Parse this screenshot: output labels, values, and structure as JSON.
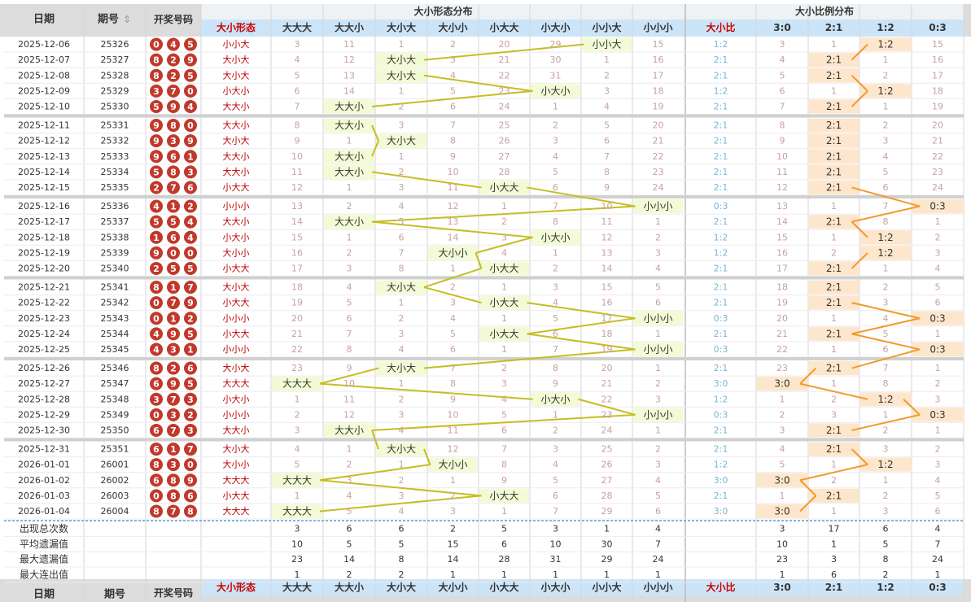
{
  "top_caption": "",
  "header": {
    "date": "日期",
    "issue": "期号",
    "sort_icon": "sort-arrows-icon",
    "draw": "开奖号码",
    "shape_group": "大小形态分布",
    "ratio_group": "大小比例分布"
  },
  "columns": {
    "shape_col": "大小形态",
    "shapes": [
      "大大大",
      "大大小",
      "大小大",
      "大小小",
      "小大大",
      "小大小",
      "小小大",
      "小小小"
    ],
    "ratio_col": "大小比",
    "ratios": [
      "3:0",
      "2:1",
      "1:2",
      "0:3"
    ]
  },
  "stats_labels": [
    "出现总次数",
    "平均遗漏值",
    "最大遗漏值",
    "最大连出值"
  ],
  "chart_data": {
    "type": "table",
    "rows": [
      {
        "date": "2025-12-06",
        "issue": "25326",
        "nums": [
          0,
          4,
          5
        ],
        "shape": "小小大",
        "shape_idx": 6,
        "shape_miss": [
          3,
          11,
          1,
          2,
          20,
          29,
          null,
          15
        ],
        "ratio": "1:2",
        "ratio_idx": 2,
        "ratio_miss": [
          3,
          1,
          null,
          15
        ]
      },
      {
        "date": "2025-12-07",
        "issue": "25327",
        "nums": [
          8,
          2,
          9
        ],
        "shape": "大小大",
        "shape_idx": 2,
        "shape_miss": [
          4,
          12,
          null,
          3,
          21,
          30,
          1,
          16
        ],
        "ratio": "2:1",
        "ratio_idx": 1,
        "ratio_miss": [
          4,
          null,
          1,
          16
        ]
      },
      {
        "date": "2025-12-08",
        "issue": "25328",
        "nums": [
          8,
          2,
          5
        ],
        "shape": "大小大",
        "shape_idx": 2,
        "shape_miss": [
          5,
          13,
          null,
          4,
          22,
          31,
          2,
          17
        ],
        "ratio": "2:1",
        "ratio_idx": 1,
        "ratio_miss": [
          5,
          null,
          2,
          17
        ]
      },
      {
        "date": "2025-12-09",
        "issue": "25329",
        "nums": [
          3,
          7,
          0
        ],
        "shape": "小大小",
        "shape_idx": 5,
        "shape_miss": [
          6,
          14,
          1,
          5,
          23,
          null,
          3,
          18
        ],
        "ratio": "1:2",
        "ratio_idx": 2,
        "ratio_miss": [
          6,
          1,
          null,
          18
        ]
      },
      {
        "date": "2025-12-10",
        "issue": "25330",
        "nums": [
          5,
          9,
          4
        ],
        "shape": "大大小",
        "shape_idx": 1,
        "shape_miss": [
          7,
          null,
          2,
          6,
          24,
          1,
          4,
          19
        ],
        "ratio": "2:1",
        "ratio_idx": 1,
        "ratio_miss": [
          7,
          null,
          1,
          19
        ]
      },
      {
        "date": "2025-12-11",
        "issue": "25331",
        "nums": [
          9,
          8,
          0
        ],
        "shape": "大大小",
        "shape_idx": 1,
        "shape_miss": [
          8,
          null,
          3,
          7,
          25,
          2,
          5,
          20
        ],
        "ratio": "2:1",
        "ratio_idx": 1,
        "ratio_miss": [
          8,
          null,
          2,
          20
        ]
      },
      {
        "date": "2025-12-12",
        "issue": "25332",
        "nums": [
          9,
          3,
          9
        ],
        "shape": "大小大",
        "shape_idx": 2,
        "shape_miss": [
          9,
          1,
          null,
          8,
          26,
          3,
          6,
          21
        ],
        "ratio": "2:1",
        "ratio_idx": 1,
        "ratio_miss": [
          9,
          null,
          3,
          21
        ]
      },
      {
        "date": "2025-12-13",
        "issue": "25333",
        "nums": [
          9,
          6,
          1
        ],
        "shape": "大大小",
        "shape_idx": 1,
        "shape_miss": [
          10,
          null,
          1,
          9,
          27,
          4,
          7,
          22
        ],
        "ratio": "2:1",
        "ratio_idx": 1,
        "ratio_miss": [
          10,
          null,
          4,
          22
        ]
      },
      {
        "date": "2025-12-14",
        "issue": "25334",
        "nums": [
          5,
          8,
          3
        ],
        "shape": "大大小",
        "shape_idx": 1,
        "shape_miss": [
          11,
          null,
          2,
          10,
          28,
          5,
          8,
          23
        ],
        "ratio": "2:1",
        "ratio_idx": 1,
        "ratio_miss": [
          11,
          null,
          5,
          23
        ]
      },
      {
        "date": "2025-12-15",
        "issue": "25335",
        "nums": [
          2,
          7,
          6
        ],
        "shape": "小大大",
        "shape_idx": 4,
        "shape_miss": [
          12,
          1,
          3,
          11,
          null,
          6,
          9,
          24
        ],
        "ratio": "2:1",
        "ratio_idx": 1,
        "ratio_miss": [
          12,
          null,
          6,
          24
        ]
      },
      {
        "date": "2025-12-16",
        "issue": "25336",
        "nums": [
          4,
          1,
          2
        ],
        "shape": "小小小",
        "shape_idx": 7,
        "shape_miss": [
          13,
          2,
          4,
          12,
          1,
          7,
          10,
          null
        ],
        "ratio": "0:3",
        "ratio_idx": 3,
        "ratio_miss": [
          13,
          1,
          7,
          null
        ]
      },
      {
        "date": "2025-12-17",
        "issue": "25337",
        "nums": [
          5,
          5,
          4
        ],
        "shape": "大大小",
        "shape_idx": 1,
        "shape_miss": [
          14,
          null,
          5,
          13,
          2,
          8,
          11,
          1
        ],
        "ratio": "2:1",
        "ratio_idx": 1,
        "ratio_miss": [
          14,
          null,
          8,
          1
        ]
      },
      {
        "date": "2025-12-18",
        "issue": "25338",
        "nums": [
          1,
          6,
          4
        ],
        "shape": "小大小",
        "shape_idx": 5,
        "shape_miss": [
          15,
          1,
          6,
          14,
          3,
          null,
          12,
          2
        ],
        "ratio": "1:2",
        "ratio_idx": 2,
        "ratio_miss": [
          15,
          1,
          null,
          2
        ]
      },
      {
        "date": "2025-12-19",
        "issue": "25339",
        "nums": [
          9,
          0,
          0
        ],
        "shape": "大小小",
        "shape_idx": 3,
        "shape_miss": [
          16,
          2,
          7,
          null,
          4,
          1,
          13,
          3
        ],
        "ratio": "1:2",
        "ratio_idx": 2,
        "ratio_miss": [
          16,
          2,
          null,
          3
        ]
      },
      {
        "date": "2025-12-20",
        "issue": "25340",
        "nums": [
          2,
          5,
          5
        ],
        "shape": "小大大",
        "shape_idx": 4,
        "shape_miss": [
          17,
          3,
          8,
          1,
          null,
          2,
          14,
          4
        ],
        "ratio": "2:1",
        "ratio_idx": 1,
        "ratio_miss": [
          17,
          null,
          1,
          4
        ]
      },
      {
        "date": "2025-12-21",
        "issue": "25341",
        "nums": [
          8,
          1,
          7
        ],
        "shape": "大小大",
        "shape_idx": 2,
        "shape_miss": [
          18,
          4,
          null,
          2,
          1,
          3,
          15,
          5
        ],
        "ratio": "2:1",
        "ratio_idx": 1,
        "ratio_miss": [
          18,
          null,
          2,
          5
        ]
      },
      {
        "date": "2025-12-22",
        "issue": "25342",
        "nums": [
          0,
          7,
          9
        ],
        "shape": "小大大",
        "shape_idx": 4,
        "shape_miss": [
          19,
          5,
          1,
          3,
          null,
          4,
          16,
          6
        ],
        "ratio": "2:1",
        "ratio_idx": 1,
        "ratio_miss": [
          19,
          null,
          3,
          6
        ]
      },
      {
        "date": "2025-12-23",
        "issue": "25343",
        "nums": [
          0,
          1,
          2
        ],
        "shape": "小小小",
        "shape_idx": 7,
        "shape_miss": [
          20,
          6,
          2,
          4,
          1,
          5,
          17,
          null
        ],
        "ratio": "0:3",
        "ratio_idx": 3,
        "ratio_miss": [
          20,
          1,
          4,
          null
        ]
      },
      {
        "date": "2025-12-24",
        "issue": "25344",
        "nums": [
          4,
          9,
          5
        ],
        "shape": "小大大",
        "shape_idx": 4,
        "shape_miss": [
          21,
          7,
          3,
          5,
          null,
          6,
          18,
          1
        ],
        "ratio": "2:1",
        "ratio_idx": 1,
        "ratio_miss": [
          21,
          null,
          5,
          1
        ]
      },
      {
        "date": "2025-12-25",
        "issue": "25345",
        "nums": [
          4,
          3,
          1
        ],
        "shape": "小小小",
        "shape_idx": 7,
        "shape_miss": [
          22,
          8,
          4,
          6,
          1,
          7,
          19,
          null
        ],
        "ratio": "0:3",
        "ratio_idx": 3,
        "ratio_miss": [
          22,
          1,
          6,
          null
        ]
      },
      {
        "date": "2025-12-26",
        "issue": "25346",
        "nums": [
          8,
          2,
          6
        ],
        "shape": "大小大",
        "shape_idx": 2,
        "shape_miss": [
          23,
          9,
          null,
          7,
          2,
          8,
          20,
          1
        ],
        "ratio": "2:1",
        "ratio_idx": 1,
        "ratio_miss": [
          23,
          null,
          7,
          1
        ]
      },
      {
        "date": "2025-12-27",
        "issue": "25347",
        "nums": [
          6,
          9,
          5
        ],
        "shape": "大大大",
        "shape_idx": 0,
        "shape_miss": [
          null,
          10,
          1,
          8,
          3,
          9,
          21,
          2
        ],
        "ratio": "3:0",
        "ratio_idx": 0,
        "ratio_miss": [
          null,
          1,
          8,
          2
        ]
      },
      {
        "date": "2025-12-28",
        "issue": "25348",
        "nums": [
          3,
          7,
          3
        ],
        "shape": "小大小",
        "shape_idx": 5,
        "shape_miss": [
          1,
          11,
          2,
          9,
          4,
          null,
          22,
          3
        ],
        "ratio": "1:2",
        "ratio_idx": 2,
        "ratio_miss": [
          1,
          2,
          null,
          3
        ]
      },
      {
        "date": "2025-12-29",
        "issue": "25349",
        "nums": [
          0,
          3,
          2
        ],
        "shape": "小小小",
        "shape_idx": 7,
        "shape_miss": [
          2,
          12,
          3,
          10,
          5,
          1,
          23,
          null
        ],
        "ratio": "0:3",
        "ratio_idx": 3,
        "ratio_miss": [
          2,
          3,
          1,
          null
        ]
      },
      {
        "date": "2025-12-30",
        "issue": "25350",
        "nums": [
          6,
          7,
          3
        ],
        "shape": "大大小",
        "shape_idx": 1,
        "shape_miss": [
          3,
          null,
          4,
          11,
          6,
          2,
          24,
          1
        ],
        "ratio": "2:1",
        "ratio_idx": 1,
        "ratio_miss": [
          3,
          null,
          2,
          1
        ]
      },
      {
        "date": "2025-12-31",
        "issue": "25351",
        "nums": [
          6,
          1,
          7
        ],
        "shape": "大小大",
        "shape_idx": 2,
        "shape_miss": [
          4,
          1,
          null,
          12,
          7,
          3,
          25,
          2
        ],
        "ratio": "2:1",
        "ratio_idx": 1,
        "ratio_miss": [
          4,
          null,
          3,
          2
        ]
      },
      {
        "date": "2026-01-01",
        "issue": "26001",
        "nums": [
          8,
          3,
          0
        ],
        "shape": "大小小",
        "shape_idx": 3,
        "shape_miss": [
          5,
          2,
          1,
          null,
          8,
          4,
          26,
          3
        ],
        "ratio": "1:2",
        "ratio_idx": 2,
        "ratio_miss": [
          5,
          1,
          null,
          3
        ]
      },
      {
        "date": "2026-01-02",
        "issue": "26002",
        "nums": [
          6,
          8,
          9
        ],
        "shape": "大大大",
        "shape_idx": 0,
        "shape_miss": [
          null,
          3,
          2,
          1,
          9,
          5,
          27,
          4
        ],
        "ratio": "3:0",
        "ratio_idx": 0,
        "ratio_miss": [
          null,
          2,
          1,
          4
        ]
      },
      {
        "date": "2026-01-03",
        "issue": "26003",
        "nums": [
          0,
          8,
          6
        ],
        "shape": "小大大",
        "shape_idx": 4,
        "shape_miss": [
          1,
          4,
          3,
          2,
          null,
          6,
          28,
          5
        ],
        "ratio": "2:1",
        "ratio_idx": 1,
        "ratio_miss": [
          1,
          null,
          2,
          5
        ]
      },
      {
        "date": "2026-01-04",
        "issue": "26004",
        "nums": [
          8,
          7,
          8
        ],
        "shape": "大大大",
        "shape_idx": 0,
        "shape_miss": [
          null,
          5,
          4,
          3,
          1,
          7,
          29,
          6
        ],
        "ratio": "3:0",
        "ratio_idx": 0,
        "ratio_miss": [
          null,
          1,
          3,
          6
        ]
      }
    ],
    "stats": [
      {
        "label": "出现总次数",
        "shape": [
          3,
          6,
          6,
          2,
          5,
          3,
          1,
          4
        ],
        "ratio": [
          3,
          17,
          6,
          4
        ]
      },
      {
        "label": "平均遗漏值",
        "shape": [
          10,
          5,
          5,
          15,
          6,
          10,
          30,
          7
        ],
        "ratio": [
          10,
          1,
          5,
          7
        ]
      },
      {
        "label": "最大遗漏值",
        "shape": [
          23,
          14,
          8,
          14,
          28,
          31,
          29,
          24
        ],
        "ratio": [
          23,
          3,
          8,
          24
        ]
      },
      {
        "label": "最大连出值",
        "shape": [
          1,
          2,
          2,
          1,
          1,
          1,
          1,
          1
        ],
        "ratio": [
          1,
          6,
          2,
          1
        ]
      }
    ],
    "colors": {
      "ball": "#c0392b",
      "shape_hit_bg": "#f2fbd5",
      "shape_line": "#c6bd24",
      "ratio_hit_bg": "#fde6cc",
      "ratio_line": "#f39a2a",
      "header_bg": "#dcdcdc",
      "subheader_bg": "#cce4f7",
      "shape_col_text": "#c00000",
      "miss_text": "#c9a0a0",
      "ratio_blue": "#7ab7d4"
    }
  }
}
